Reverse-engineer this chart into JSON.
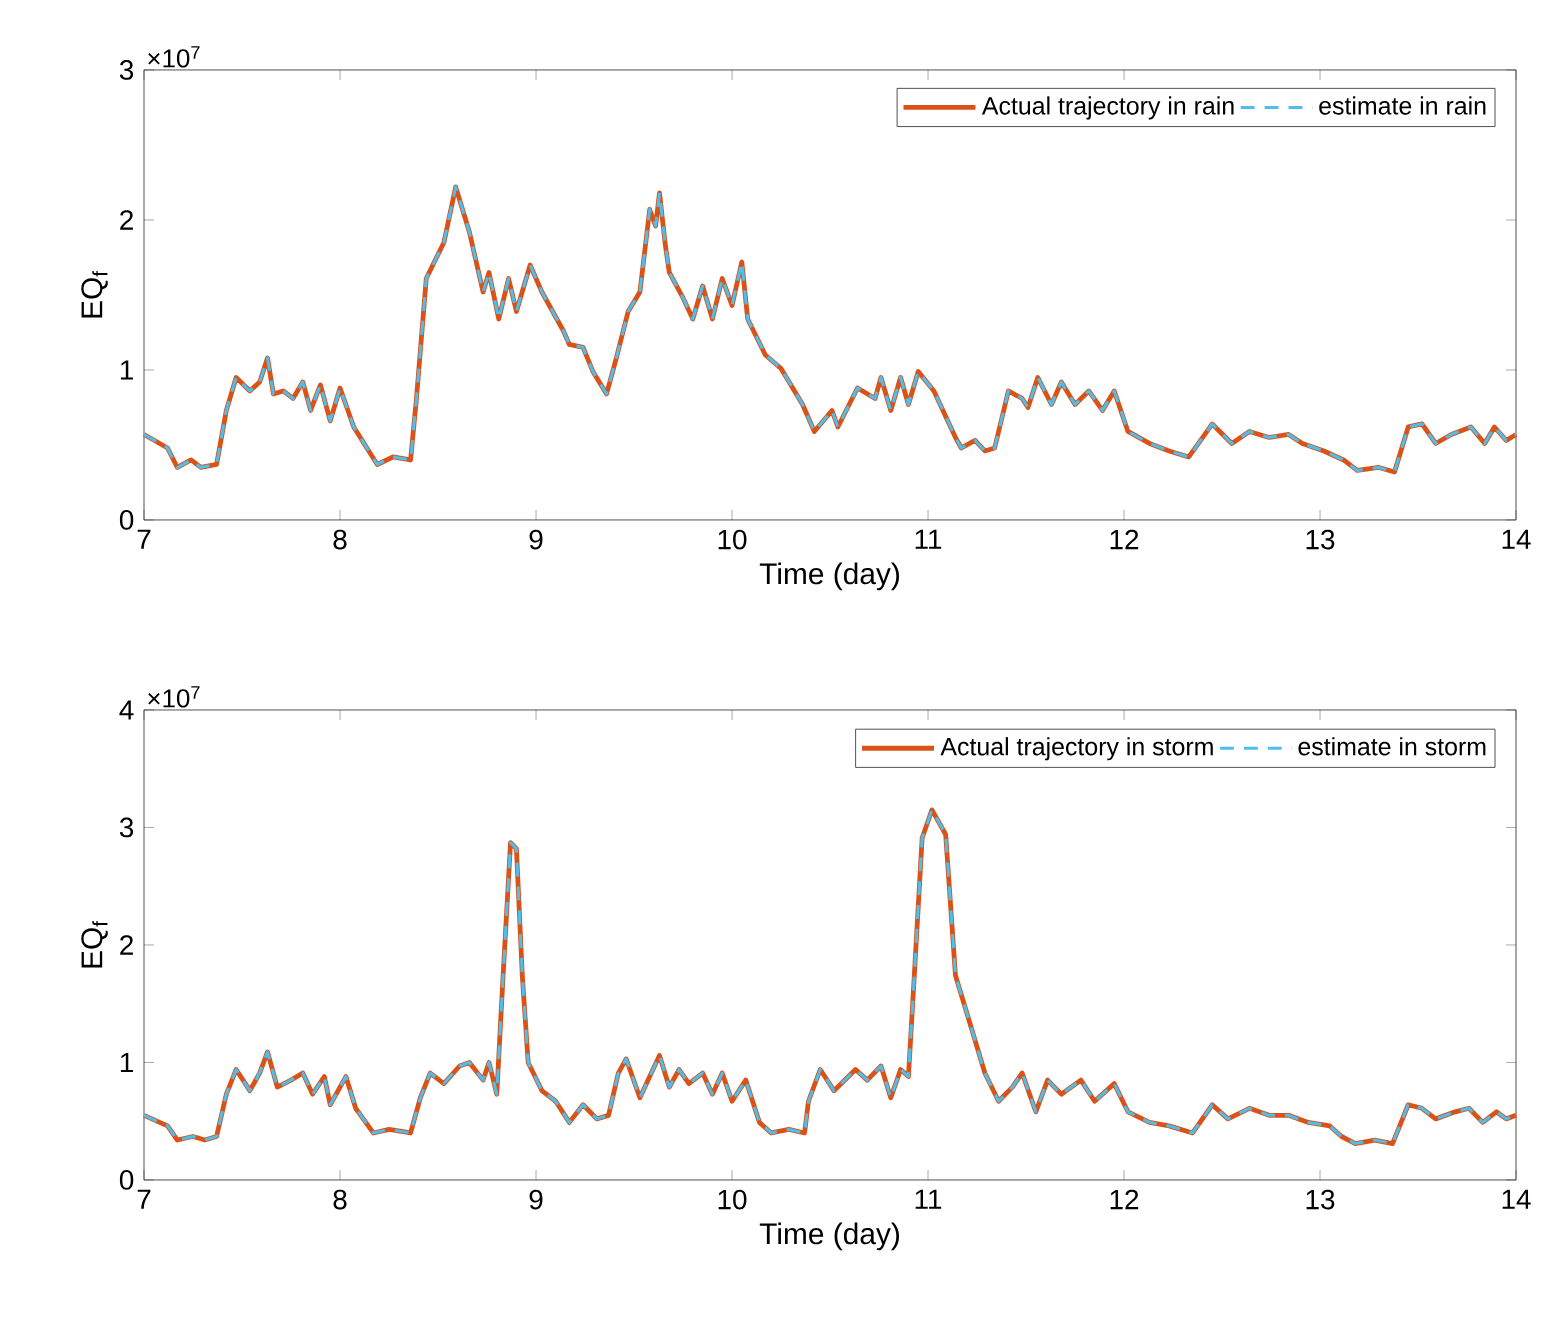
{
  "chart_data": [
    {
      "type": "line",
      "xlabel": "Time (day)",
      "ylabel": "EQ$_{f}$",
      "annotations": [
        "×10$^{7}$"
      ],
      "x": [
        7.0,
        7.12,
        7.17,
        7.24,
        7.29,
        7.37,
        7.42,
        7.47,
        7.54,
        7.59,
        7.63,
        7.66,
        7.71,
        7.76,
        7.81,
        7.85,
        7.9,
        7.95,
        8.0,
        8.07,
        8.19,
        8.27,
        8.36,
        8.39,
        8.44,
        8.53,
        8.59,
        8.66,
        8.73,
        8.76,
        8.81,
        8.86,
        8.9,
        8.97,
        9.03,
        9.14,
        9.17,
        9.24,
        9.29,
        9.36,
        9.41,
        9.47,
        9.53,
        9.58,
        9.61,
        9.63,
        9.66,
        9.68,
        9.75,
        9.8,
        9.85,
        9.9,
        9.95,
        10.0,
        10.05,
        10.08,
        10.17,
        10.25,
        10.36,
        10.42,
        10.51,
        10.54,
        10.64,
        10.73,
        10.76,
        10.81,
        10.86,
        10.9,
        10.95,
        11.03,
        11.14,
        11.17,
        11.24,
        11.29,
        11.34,
        11.41,
        11.48,
        11.51,
        11.56,
        11.63,
        11.68,
        11.75,
        11.82,
        11.89,
        11.95,
        12.02,
        12.13,
        12.23,
        12.33,
        12.38,
        12.45,
        12.55,
        12.64,
        12.74,
        12.84,
        12.91,
        13.02,
        13.12,
        13.19,
        13.3,
        13.38,
        13.45,
        13.52,
        13.59,
        13.67,
        13.77,
        13.84,
        13.89,
        13.95,
        14.0
      ],
      "series": [
        {
          "name": "Actual trajectory in rain",
          "color": "#d95319",
          "line_style": "solid",
          "values": [
            0.57,
            0.48,
            0.35,
            0.4,
            0.35,
            0.37,
            0.73,
            0.95,
            0.86,
            0.92,
            1.08,
            0.84,
            0.86,
            0.81,
            0.92,
            0.73,
            0.9,
            0.66,
            0.88,
            0.62,
            0.37,
            0.42,
            0.4,
            0.81,
            1.61,
            1.85,
            2.22,
            1.92,
            1.52,
            1.65,
            1.34,
            1.61,
            1.39,
            1.7,
            1.52,
            1.26,
            1.17,
            1.15,
            0.99,
            0.84,
            1.08,
            1.39,
            1.52,
            2.07,
            1.96,
            2.18,
            1.83,
            1.65,
            1.48,
            1.34,
            1.56,
            1.34,
            1.61,
            1.43,
            1.72,
            1.34,
            1.1,
            1.01,
            0.77,
            0.59,
            0.73,
            0.62,
            0.88,
            0.81,
            0.95,
            0.73,
            0.95,
            0.77,
            0.99,
            0.86,
            0.55,
            0.48,
            0.53,
            0.46,
            0.48,
            0.86,
            0.81,
            0.75,
            0.95,
            0.77,
            0.92,
            0.77,
            0.86,
            0.73,
            0.86,
            0.59,
            0.51,
            0.46,
            0.42,
            0.51,
            0.64,
            0.51,
            0.59,
            0.55,
            0.57,
            0.51,
            0.46,
            0.4,
            0.33,
            0.35,
            0.32,
            0.62,
            0.64,
            0.51,
            0.57,
            0.62,
            0.51,
            0.62,
            0.53,
            0.57
          ]
        },
        {
          "name": "estimate in rain",
          "color": "#4dbeee",
          "line_style": "dashed",
          "values": [
            0.57,
            0.48,
            0.35,
            0.4,
            0.35,
            0.37,
            0.73,
            0.95,
            0.86,
            0.92,
            1.08,
            0.84,
            0.86,
            0.81,
            0.92,
            0.73,
            0.9,
            0.66,
            0.88,
            0.62,
            0.37,
            0.42,
            0.4,
            0.81,
            1.61,
            1.85,
            2.22,
            1.92,
            1.52,
            1.65,
            1.34,
            1.61,
            1.39,
            1.7,
            1.52,
            1.26,
            1.17,
            1.15,
            0.99,
            0.84,
            1.08,
            1.39,
            1.52,
            2.07,
            1.96,
            2.18,
            1.83,
            1.65,
            1.48,
            1.34,
            1.56,
            1.34,
            1.61,
            1.43,
            1.72,
            1.34,
            1.1,
            1.01,
            0.77,
            0.59,
            0.73,
            0.62,
            0.88,
            0.81,
            0.95,
            0.73,
            0.95,
            0.77,
            0.99,
            0.86,
            0.55,
            0.48,
            0.53,
            0.46,
            0.48,
            0.86,
            0.81,
            0.75,
            0.95,
            0.77,
            0.92,
            0.77,
            0.86,
            0.73,
            0.86,
            0.59,
            0.51,
            0.46,
            0.42,
            0.51,
            0.64,
            0.51,
            0.59,
            0.55,
            0.57,
            0.51,
            0.46,
            0.4,
            0.33,
            0.35,
            0.32,
            0.62,
            0.64,
            0.51,
            0.57,
            0.62,
            0.51,
            0.62,
            0.53,
            0.57
          ]
        }
      ],
      "xlim": [
        7,
        14
      ],
      "xticks": [
        7,
        8,
        9,
        10,
        11,
        12,
        13,
        14
      ],
      "ylim": [
        0,
        3
      ],
      "yticks": [
        0,
        1,
        2,
        3
      ],
      "grid": false,
      "legend": "top right",
      "marker": "none"
    },
    {
      "type": "line",
      "xlabel": "Time (day)",
      "ylabel": "EQ$_{f}$",
      "annotations": [
        "×10$^{7}$"
      ],
      "x": [
        7.0,
        7.12,
        7.17,
        7.25,
        7.31,
        7.37,
        7.42,
        7.47,
        7.54,
        7.59,
        7.63,
        7.68,
        7.75,
        7.81,
        7.86,
        7.92,
        7.95,
        8.03,
        8.08,
        8.17,
        8.25,
        8.36,
        8.41,
        8.46,
        8.53,
        8.61,
        8.66,
        8.73,
        8.76,
        8.8,
        8.83,
        8.87,
        8.9,
        8.93,
        8.96,
        9.03,
        9.1,
        9.17,
        9.24,
        9.31,
        9.37,
        9.42,
        9.46,
        9.53,
        9.58,
        9.63,
        9.68,
        9.73,
        9.78,
        9.85,
        9.9,
        9.95,
        10.0,
        10.07,
        10.14,
        10.2,
        10.29,
        10.37,
        10.39,
        10.45,
        10.52,
        10.63,
        10.69,
        10.76,
        10.81,
        10.86,
        10.9,
        10.93,
        10.97,
        11.02,
        11.09,
        11.14,
        11.2,
        11.29,
        11.36,
        11.43,
        11.48,
        11.55,
        11.61,
        11.68,
        11.78,
        11.85,
        11.95,
        12.02,
        12.13,
        12.23,
        12.35,
        12.45,
        12.53,
        12.64,
        12.74,
        12.84,
        12.94,
        13.05,
        13.11,
        13.18,
        13.28,
        13.37,
        13.45,
        13.52,
        13.59,
        13.69,
        13.76,
        13.83,
        13.9,
        13.95,
        14.0
      ],
      "series": [
        {
          "name": "Actual trajectory in storm",
          "color": "#d95319",
          "line_style": "solid",
          "values": [
            0.55,
            0.46,
            0.34,
            0.37,
            0.34,
            0.37,
            0.73,
            0.94,
            0.76,
            0.91,
            1.09,
            0.79,
            0.85,
            0.91,
            0.73,
            0.88,
            0.64,
            0.88,
            0.61,
            0.4,
            0.43,
            0.4,
            0.7,
            0.91,
            0.82,
            0.97,
            1.0,
            0.85,
            1.0,
            0.73,
            1.68,
            2.87,
            2.82,
            1.74,
            1.0,
            0.76,
            0.67,
            0.49,
            0.64,
            0.52,
            0.55,
            0.91,
            1.03,
            0.7,
            0.88,
            1.06,
            0.79,
            0.94,
            0.82,
            0.91,
            0.73,
            0.91,
            0.67,
            0.85,
            0.49,
            0.4,
            0.43,
            0.4,
            0.67,
            0.94,
            0.76,
            0.94,
            0.85,
            0.97,
            0.7,
            0.94,
            0.88,
            1.74,
            2.91,
            3.15,
            2.94,
            1.74,
            1.41,
            0.91,
            0.67,
            0.79,
            0.91,
            0.58,
            0.85,
            0.73,
            0.85,
            0.67,
            0.82,
            0.58,
            0.49,
            0.46,
            0.4,
            0.64,
            0.52,
            0.61,
            0.55,
            0.55,
            0.49,
            0.46,
            0.37,
            0.31,
            0.34,
            0.31,
            0.64,
            0.61,
            0.52,
            0.58,
            0.61,
            0.49,
            0.58,
            0.52,
            0.55
          ]
        },
        {
          "name": "estimate in storm",
          "color": "#4dbeee",
          "line_style": "dashed",
          "values": [
            0.55,
            0.46,
            0.34,
            0.37,
            0.34,
            0.37,
            0.73,
            0.94,
            0.76,
            0.91,
            1.09,
            0.79,
            0.85,
            0.91,
            0.73,
            0.88,
            0.64,
            0.88,
            0.61,
            0.4,
            0.43,
            0.4,
            0.7,
            0.91,
            0.82,
            0.97,
            1.0,
            0.85,
            1.0,
            0.73,
            1.68,
            2.87,
            2.82,
            1.74,
            1.0,
            0.76,
            0.67,
            0.49,
            0.64,
            0.52,
            0.55,
            0.91,
            1.03,
            0.7,
            0.88,
            1.06,
            0.79,
            0.94,
            0.82,
            0.91,
            0.73,
            0.91,
            0.67,
            0.85,
            0.49,
            0.4,
            0.43,
            0.4,
            0.67,
            0.94,
            0.76,
            0.94,
            0.85,
            0.97,
            0.7,
            0.94,
            0.88,
            1.74,
            2.91,
            3.15,
            2.94,
            1.74,
            1.41,
            0.91,
            0.67,
            0.79,
            0.91,
            0.58,
            0.85,
            0.73,
            0.85,
            0.67,
            0.82,
            0.58,
            0.49,
            0.46,
            0.4,
            0.64,
            0.52,
            0.61,
            0.55,
            0.55,
            0.49,
            0.46,
            0.37,
            0.31,
            0.34,
            0.31,
            0.64,
            0.61,
            0.52,
            0.58,
            0.61,
            0.49,
            0.58,
            0.52,
            0.55
          ]
        }
      ],
      "xlim": [
        7,
        14
      ],
      "xticks": [
        7,
        8,
        9,
        10,
        11,
        12,
        13,
        14
      ],
      "ylim": [
        0,
        4
      ],
      "yticks": [
        0,
        1,
        2,
        3,
        4
      ],
      "grid": false,
      "legend": "top right",
      "marker": "none"
    }
  ]
}
